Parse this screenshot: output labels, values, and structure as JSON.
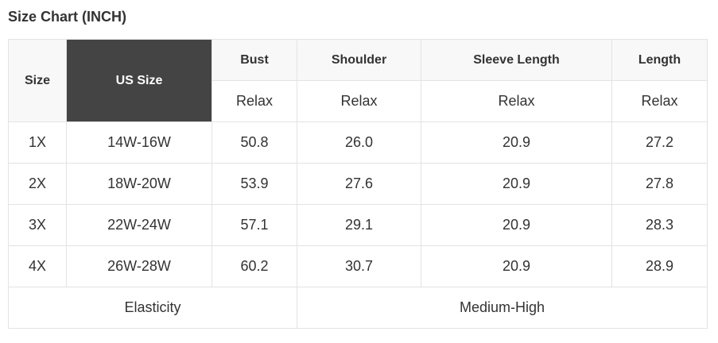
{
  "title": "Size Chart (INCH)",
  "headers": {
    "size": "Size",
    "us_size": "US Size",
    "columns": [
      "Bust",
      "Shoulder",
      "Sleeve Length",
      "Length"
    ],
    "fit": [
      "Relax",
      "Relax",
      "Relax",
      "Relax"
    ]
  },
  "rows": [
    [
      "1X",
      "14W-16W",
      "50.8",
      "26.0",
      "20.9",
      "27.2"
    ],
    [
      "2X",
      "18W-20W",
      "53.9",
      "27.6",
      "20.9",
      "27.8"
    ],
    [
      "3X",
      "22W-24W",
      "57.1",
      "29.1",
      "20.9",
      "28.3"
    ],
    [
      "4X",
      "26W-28W",
      "60.2",
      "30.7",
      "20.9",
      "28.9"
    ]
  ],
  "footer": {
    "label": "Elasticity",
    "value": "Medium-High"
  },
  "colors": {
    "header_dark": "#444444",
    "header_light": "#f8f8f8",
    "border": "#e3e3e3",
    "text": "#333333"
  }
}
